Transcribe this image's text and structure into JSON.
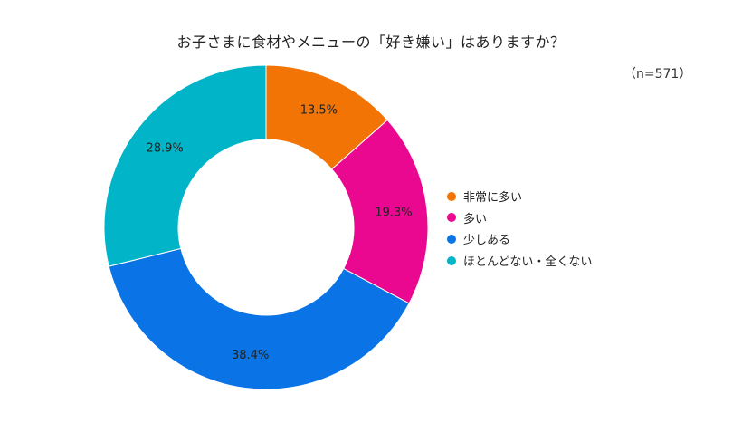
{
  "chart_data": {
    "type": "pie",
    "donut": true,
    "title": "お子さまに食材やメニューの「好き嫌い」はありますか？",
    "sample_size": "（n=571）",
    "categories": [
      "非常に多い",
      "多い",
      "少しある",
      "ほとんどない・全くない"
    ],
    "values": [
      13.5,
      19.3,
      38.4,
      28.9
    ],
    "labels": [
      "13.5%",
      "19.3%",
      "38.4%",
      "28.9%"
    ],
    "colors": [
      "#f27405",
      "#ea0890",
      "#0a74e6",
      "#01b4c8"
    ],
    "legend_position": "right"
  }
}
